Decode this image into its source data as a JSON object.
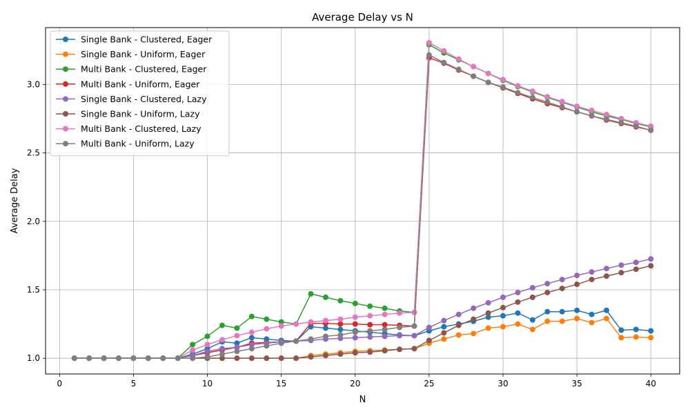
{
  "chart_data": {
    "type": "line",
    "title": "Average Delay vs N",
    "xlabel": "N",
    "ylabel": "Average Delay",
    "xlim": [
      -0.95,
      41.95
    ],
    "ylim": [
      0.885,
      3.415
    ],
    "xticks": [
      0,
      5,
      10,
      15,
      20,
      25,
      30,
      35,
      40
    ],
    "yticks": [
      1.0,
      1.5,
      2.0,
      2.5,
      3.0
    ],
    "ytick_labels": [
      "1.0",
      "1.5",
      "2.0",
      "2.5",
      "3.0"
    ],
    "grid": true,
    "legend_position": "upper-left",
    "x": [
      1,
      2,
      3,
      4,
      5,
      6,
      7,
      8,
      9,
      10,
      11,
      12,
      13,
      14,
      15,
      16,
      17,
      18,
      19,
      20,
      21,
      22,
      23,
      24,
      25,
      26,
      27,
      28,
      29,
      30,
      31,
      32,
      33,
      34,
      35,
      36,
      37,
      38,
      39,
      40
    ],
    "series": [
      {
        "name": "Single Bank - Clustered, Eager",
        "color": "#1f77b4",
        "values": [
          1,
          1,
          1,
          1,
          1,
          1,
          1,
          1,
          1.03,
          1.07,
          1.12,
          1.11,
          1.15,
          1.14,
          1.13,
          1.125,
          1.23,
          1.22,
          1.21,
          1.2,
          1.19,
          1.18,
          1.17,
          1.165,
          1.2,
          1.23,
          1.25,
          1.27,
          1.3,
          1.31,
          1.33,
          1.28,
          1.34,
          1.34,
          1.35,
          1.32,
          1.35,
          1.205,
          1.21,
          1.2
        ]
      },
      {
        "name": "Single Bank - Uniform, Eager",
        "color": "#ff7f0e",
        "values": [
          1,
          1,
          1,
          1,
          1,
          1,
          1,
          1,
          1,
          1,
          1,
          1,
          1,
          1,
          1,
          1,
          1.02,
          1.03,
          1.04,
          1.05,
          1.055,
          1.06,
          1.065,
          1.07,
          1.11,
          1.14,
          1.17,
          1.18,
          1.22,
          1.23,
          1.25,
          1.21,
          1.27,
          1.27,
          1.29,
          1.26,
          1.29,
          1.15,
          1.155,
          1.15
        ]
      },
      {
        "name": "Multi Bank - Clustered, Eager",
        "color": "#2ca02c",
        "values": [
          1,
          1,
          1,
          1,
          1,
          1,
          1,
          1,
          1.1,
          1.16,
          1.24,
          1.22,
          1.305,
          1.285,
          1.265,
          1.25,
          1.47,
          1.445,
          1.42,
          1.4,
          1.38,
          1.365,
          1.345,
          1.335,
          3.29,
          3.23,
          3.18,
          3.13,
          3.08,
          3.03,
          2.985,
          2.945,
          2.905,
          2.87,
          2.835,
          2.8,
          2.77,
          2.745,
          2.715,
          2.69
        ]
      },
      {
        "name": "Multi Bank - Uniform, Eager",
        "color": "#d62728",
        "values": [
          1,
          1,
          1,
          1,
          1,
          1,
          1,
          1,
          1.02,
          1.04,
          1.06,
          1.08,
          1.11,
          1.115,
          1.12,
          1.125,
          1.255,
          1.255,
          1.25,
          1.25,
          1.245,
          1.245,
          1.24,
          1.235,
          3.195,
          3.155,
          3.105,
          3.06,
          3.015,
          2.975,
          2.935,
          2.895,
          2.86,
          2.83,
          2.8,
          2.77,
          2.74,
          2.715,
          2.69,
          2.665
        ]
      },
      {
        "name": "Single Bank - Clustered, Lazy",
        "color": "#9467bd",
        "values": [
          1,
          1,
          1,
          1,
          1,
          1,
          1,
          1,
          1.02,
          1.05,
          1.07,
          1.08,
          1.1,
          1.11,
          1.12,
          1.125,
          1.13,
          1.14,
          1.145,
          1.15,
          1.155,
          1.16,
          1.165,
          1.165,
          1.225,
          1.275,
          1.32,
          1.365,
          1.405,
          1.445,
          1.48,
          1.515,
          1.545,
          1.575,
          1.605,
          1.63,
          1.655,
          1.68,
          1.7,
          1.725
        ]
      },
      {
        "name": "Single Bank - Uniform, Lazy",
        "color": "#8c564b",
        "values": [
          1,
          1,
          1,
          1,
          1,
          1,
          1,
          1,
          1,
          1,
          1,
          1,
          1,
          1,
          1,
          1,
          1.01,
          1.02,
          1.03,
          1.04,
          1.045,
          1.055,
          1.065,
          1.07,
          1.13,
          1.185,
          1.24,
          1.285,
          1.33,
          1.37,
          1.41,
          1.445,
          1.48,
          1.51,
          1.54,
          1.575,
          1.6,
          1.625,
          1.65,
          1.675
        ]
      },
      {
        "name": "Multi Bank - Clustered, Lazy",
        "color": "#e377c2",
        "values": [
          1,
          1,
          1,
          1,
          1,
          1,
          1,
          1,
          1.06,
          1.1,
          1.135,
          1.165,
          1.19,
          1.215,
          1.235,
          1.25,
          1.265,
          1.275,
          1.285,
          1.3,
          1.31,
          1.32,
          1.33,
          1.335,
          3.305,
          3.245,
          3.185,
          3.13,
          3.08,
          3.035,
          2.99,
          2.95,
          2.91,
          2.875,
          2.84,
          2.81,
          2.78,
          2.75,
          2.72,
          2.695
        ]
      },
      {
        "name": "Multi Bank - Uniform, Lazy",
        "color": "#7f7f7f",
        "values": [
          1,
          1,
          1,
          1,
          1,
          1,
          1,
          1,
          1,
          1.01,
          1.03,
          1.05,
          1.07,
          1.09,
          1.11,
          1.125,
          1.14,
          1.16,
          1.17,
          1.19,
          1.2,
          1.21,
          1.225,
          1.235,
          3.215,
          3.16,
          3.11,
          3.06,
          3.015,
          2.98,
          2.94,
          2.905,
          2.87,
          2.835,
          2.8,
          2.77,
          2.745,
          2.72,
          2.695,
          2.665
        ]
      }
    ]
  }
}
